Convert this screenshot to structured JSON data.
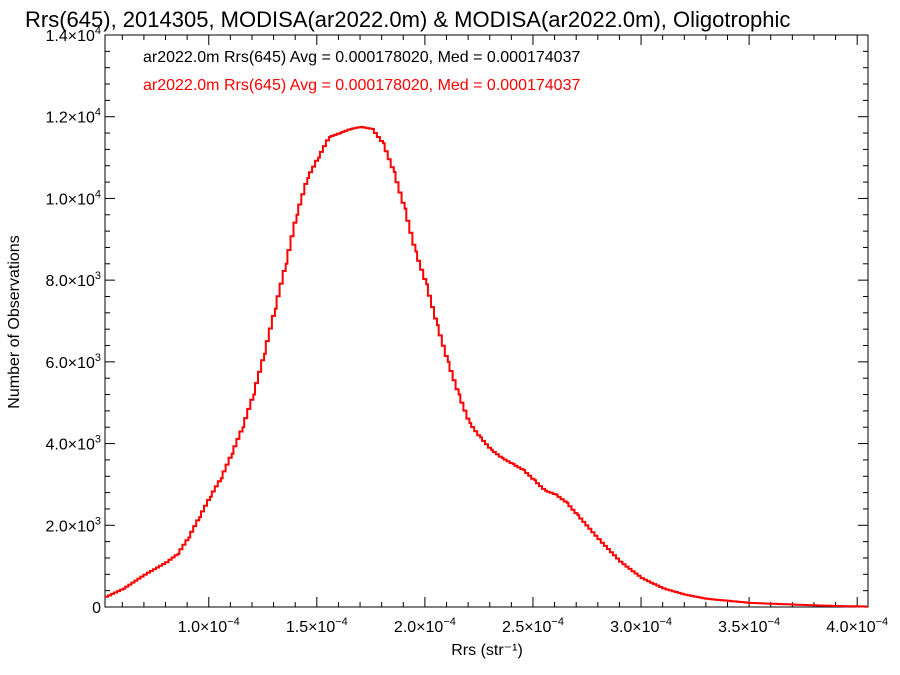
{
  "chart_data": {
    "type": "line",
    "title": "Rrs(645), 2014305, MODISA(ar2022.0m) & MODISA(ar2022.0m), Oligotrophic",
    "xlabel": "Rrs (str⁻¹)",
    "ylabel": "Number of Observations",
    "xlim": [
      5.2e-05,
      0.000405
    ],
    "ylim": [
      0,
      14000
    ],
    "x_ticks": [
      {
        "value": 0.0001,
        "mant": "1.0",
        "exp": "−4"
      },
      {
        "value": 0.00015,
        "mant": "1.5",
        "exp": "−4"
      },
      {
        "value": 0.0002,
        "mant": "2.0",
        "exp": "−4"
      },
      {
        "value": 0.00025,
        "mant": "2.5",
        "exp": "−4"
      },
      {
        "value": 0.0003,
        "mant": "3.0",
        "exp": "−4"
      },
      {
        "value": 0.00035,
        "mant": "3.5",
        "exp": "−4"
      },
      {
        "value": 0.0004,
        "mant": "4.0",
        "exp": "−4"
      }
    ],
    "y_ticks": [
      {
        "value": 0,
        "mant": "0",
        "exp": ""
      },
      {
        "value": 2000,
        "mant": "2.0",
        "exp": "3"
      },
      {
        "value": 4000,
        "mant": "4.0",
        "exp": "3"
      },
      {
        "value": 6000,
        "mant": "6.0",
        "exp": "3"
      },
      {
        "value": 8000,
        "mant": "8.0",
        "exp": "3"
      },
      {
        "value": 10000,
        "mant": "1.0",
        "exp": "4"
      },
      {
        "value": 12000,
        "mant": "1.2",
        "exp": "4"
      },
      {
        "value": 14000,
        "mant": "1.4",
        "exp": "4"
      }
    ],
    "annotations": [
      {
        "text": "ar2022.0m Rrs(645) Avg = 0.000178020, Med = 0.000174037",
        "color": "#000000"
      },
      {
        "text": "ar2022.0m Rrs(645) Avg = 0.000178020, Med = 0.000174037",
        "color": "#ff0000"
      }
    ],
    "grid": false,
    "series": [
      {
        "color": "#ff0000",
        "step": true,
        "x": [
          5.2e-05,
          6e-05,
          7e-05,
          8e-05,
          8.5e-05,
          9e-05,
          9.5e-05,
          0.0001,
          0.000105,
          0.00011,
          0.000115,
          0.00012,
          0.000125,
          0.00013,
          0.000135,
          0.00014,
          0.000145,
          0.00015,
          0.000155,
          0.00016,
          0.000165,
          0.00017,
          0.000175,
          0.00018,
          0.000185,
          0.00019,
          0.000195,
          0.0002,
          0.000205,
          0.00021,
          0.000215,
          0.00022,
          0.000225,
          0.00023,
          0.000235,
          0.00024,
          0.000245,
          0.00025,
          0.000255,
          0.00026,
          0.000265,
          0.00027,
          0.00028,
          0.00029,
          0.0003,
          0.00031,
          0.00032,
          0.00033,
          0.00034,
          0.00035,
          0.00036,
          0.00037,
          0.00038,
          0.00039,
          0.0004,
          0.000405
        ],
        "y": [
          250,
          450,
          800,
          1100,
          1300,
          1700,
          2200,
          2700,
          3150,
          3750,
          4400,
          5200,
          6200,
          7300,
          8400,
          9600,
          10500,
          11000,
          11500,
          11600,
          11700,
          11750,
          11700,
          11350,
          10650,
          9750,
          8700,
          7900,
          6900,
          6000,
          5200,
          4500,
          4150,
          3850,
          3650,
          3500,
          3350,
          3100,
          2850,
          2750,
          2550,
          2250,
          1650,
          1100,
          700,
          450,
          300,
          200,
          150,
          100,
          80,
          60,
          40,
          25,
          15,
          10
        ]
      }
    ]
  }
}
